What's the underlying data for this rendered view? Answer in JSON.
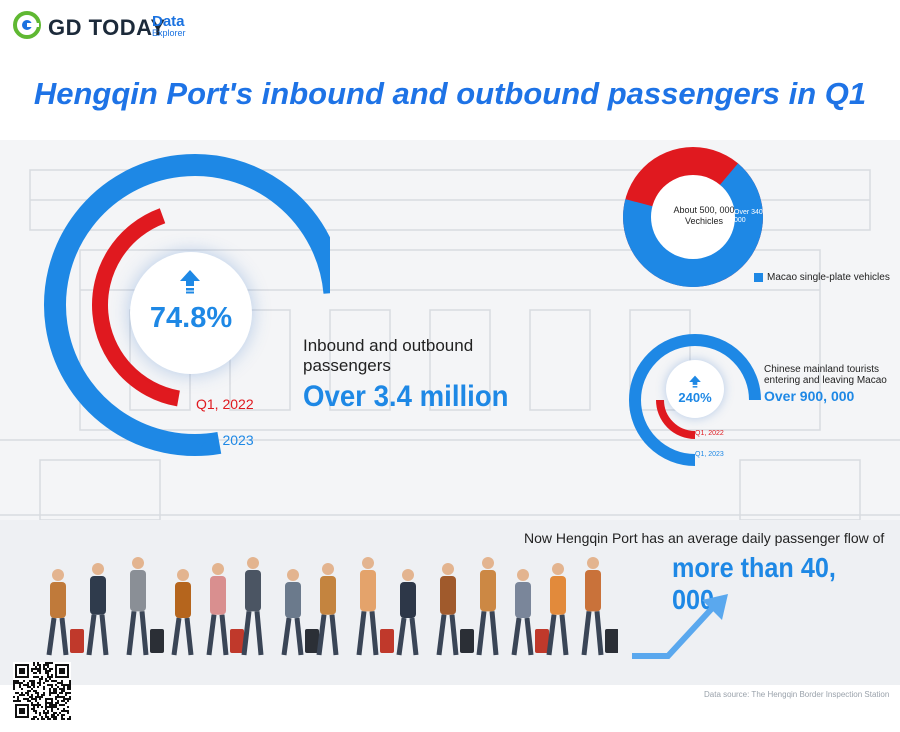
{
  "header": {
    "brand": "GD TODAY",
    "sub_brand_top": "Data",
    "sub_brand_bottom": "Explorer"
  },
  "title": "Hengqin Port's inbound and outbound passengers in Q1",
  "passengers": {
    "change_percent": "74.8%",
    "label": "Inbound and outbound passengers",
    "value": "Over 3.4 million",
    "q1_2022_label": "Q1, 2022",
    "q1_2023_label": "Q1, 2023",
    "q1_2022_fill": 0.4,
    "q1_2023_fill": 0.7
  },
  "vehicles": {
    "center_text": "About 500, 000 Vechicles",
    "macao_share_text": "Over 340, 000",
    "macao_share_fraction": 0.68,
    "legend": "Macao single-plate vehicles"
  },
  "tourists": {
    "change_percent": "240%",
    "label": "Chinese mainland tourists entering and leaving Macao",
    "value": "Over 900, 000",
    "q1_2022_label": "Q1, 2022",
    "q1_2023_label": "Q1, 2023"
  },
  "daily": {
    "label": "Now Hengqin Port has an average daily passenger flow of",
    "value": "more than 40, 000"
  },
  "source": "Data source: The Hengqin Border Inspection Station",
  "colors": {
    "blue": "#1e88e5",
    "red": "#e0191f",
    "title_blue": "#1e73e6"
  }
}
